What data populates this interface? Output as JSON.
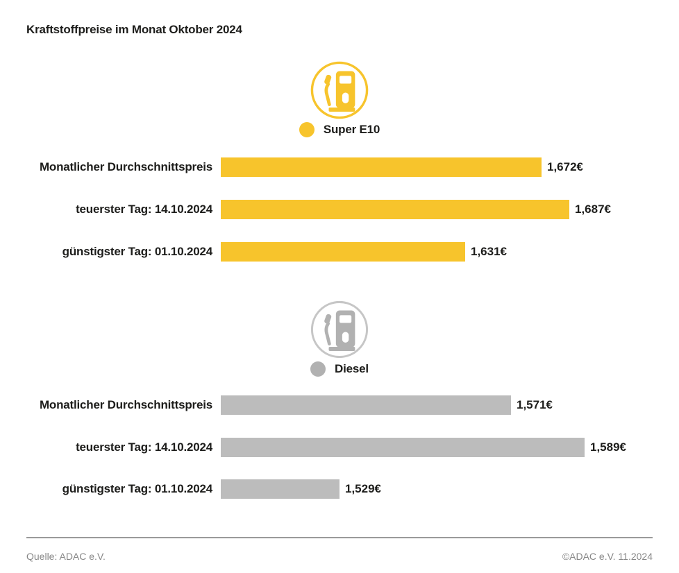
{
  "title": "Kraftstoffpreise im Monat Oktober 2024",
  "colors": {
    "super_e10": "#F7C42C",
    "diesel_bar": "#BCBCBC",
    "diesel_icon": "#B1B1B1",
    "text": "#1d1d1b",
    "footer_text": "#878787"
  },
  "chart_data": [
    {
      "type": "bar",
      "orientation": "horizontal",
      "title": "Super E10",
      "icon": "fuel-pump-icon",
      "categories": [
        "Monatlicher Durchschnittspreis",
        "teuerster Tag: 14.10.2024",
        "günstigster Tag: 01.10.2024"
      ],
      "values": [
        1.672,
        1.687,
        1.631
      ],
      "labels": [
        "1,672€",
        "1,687€",
        "1,631€"
      ],
      "unit": "EUR per liter",
      "xlim": [
        1.5,
        1.69
      ],
      "grid": false,
      "legend_position": "top-center",
      "color": "#F7C42C"
    },
    {
      "type": "bar",
      "orientation": "horizontal",
      "title": "Diesel",
      "icon": "fuel-pump-icon",
      "categories": [
        "Monatlicher Durchschnittspreis",
        "teuerster Tag: 14.10.2024",
        "günstigster Tag: 01.10.2024"
      ],
      "values": [
        1.571,
        1.589,
        1.529
      ],
      "labels": [
        "1,571€",
        "1,589€",
        "1,529€"
      ],
      "unit": "EUR per liter",
      "xlim": [
        1.5,
        1.59
      ],
      "grid": false,
      "legend_position": "top-center",
      "color": "#BCBCBC",
      "icon_color": "#B1B1B1"
    }
  ],
  "footer": {
    "source": "Quelle: ADAC e.V.",
    "copyright": "©ADAC e.V. 11.2024"
  }
}
